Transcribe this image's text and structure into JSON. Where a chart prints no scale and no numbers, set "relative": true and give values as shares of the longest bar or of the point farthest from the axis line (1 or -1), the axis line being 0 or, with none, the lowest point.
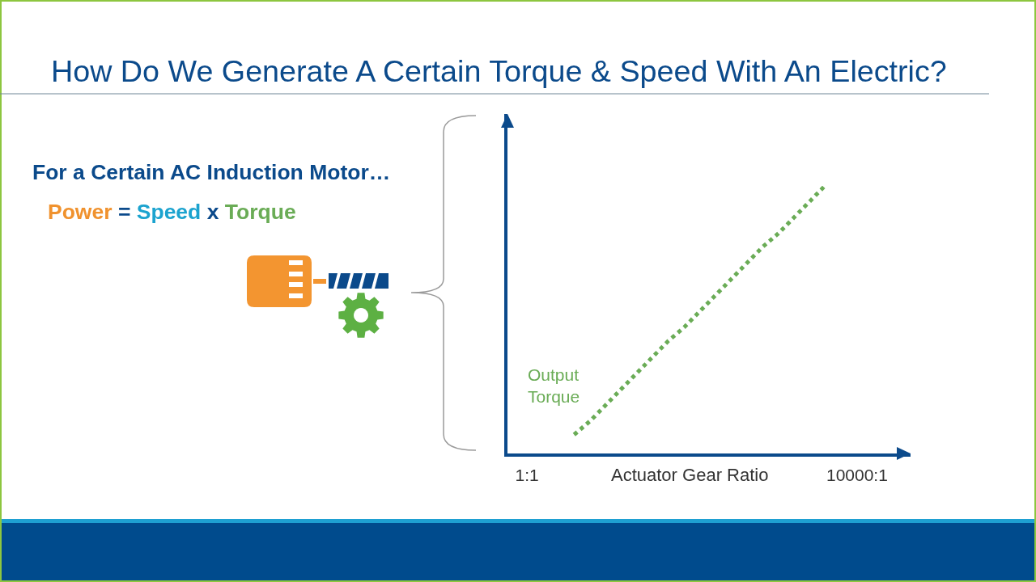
{
  "chart_data": {
    "type": "line",
    "title": "How Do We Generate A Certain Torque & Speed With An Electric?",
    "xlabel": "Actuator Gear Ratio",
    "annotations": [
      "For a Certain AC Induction Motor…",
      "Power = Speed x Torque"
    ],
    "categories": [
      "1:1",
      null,
      null,
      null,
      null,
      null,
      null,
      null,
      null,
      null,
      null,
      null,
      null,
      null,
      null,
      null,
      null,
      null,
      null,
      null,
      null,
      "10000:1"
    ],
    "series": [
      {
        "name": "Output Torque",
        "color": "#6aac56",
        "values": [
          null,
          null,
          null,
          0.07,
          0.12,
          0.18,
          0.24,
          0.3,
          0.36,
          0.42,
          0.47,
          0.53,
          0.59,
          0.65,
          0.71,
          0.77,
          0.82,
          0.88,
          0.94,
          1,
          null,
          null
        ]
      }
    ],
    "relative": true,
    "tick_labels": "x",
    "line_style": "dotted"
  }
}
